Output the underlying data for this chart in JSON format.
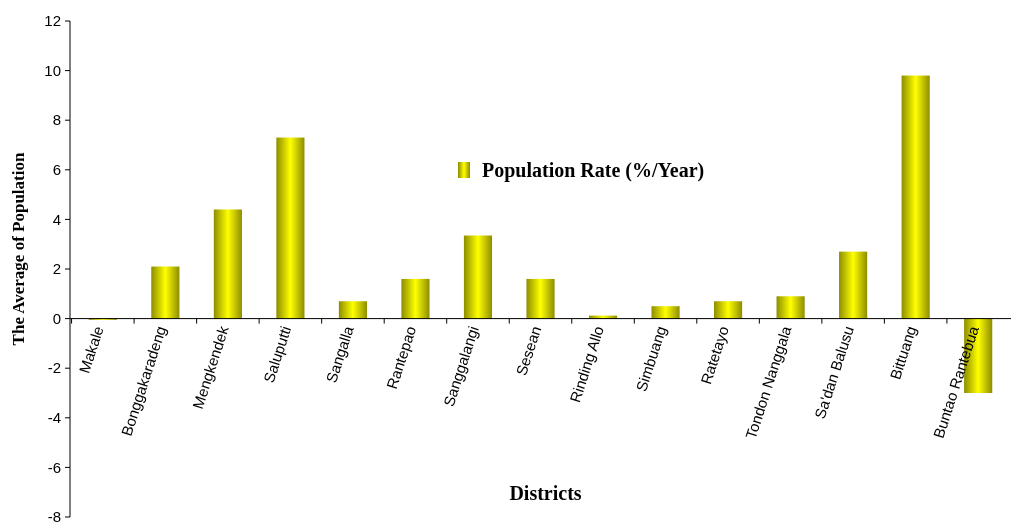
{
  "chart_data": {
    "type": "bar",
    "xlabel": "Districts",
    "ylabel": "The Average of Population",
    "categories": [
      "Makale",
      "Bonggakaradeng",
      "Mengkendek",
      "Saluputti",
      "Sangalla",
      "Rantepao",
      "Sanggalangi",
      "Sesean",
      "Rinding Allo",
      "Simbuang",
      "Ratetayo",
      "Tondon Nanggala",
      "Sa'dan Balusu",
      "Bittuang",
      "Buntao Rantebua"
    ],
    "series": [
      {
        "name": "Population Rate  (%/Year)",
        "color": "#d8d800",
        "values": [
          -0.05,
          2.1,
          4.4,
          7.3,
          0.7,
          1.6,
          3.35,
          1.6,
          0.12,
          0.5,
          0.7,
          0.9,
          2.7,
          9.8,
          -3.0
        ]
      }
    ],
    "ylim": [
      -8,
      12
    ],
    "yticks": [
      -8,
      -6,
      -4,
      -2,
      0,
      2,
      4,
      6,
      8,
      10,
      12
    ],
    "grid": false,
    "legend": "top"
  }
}
